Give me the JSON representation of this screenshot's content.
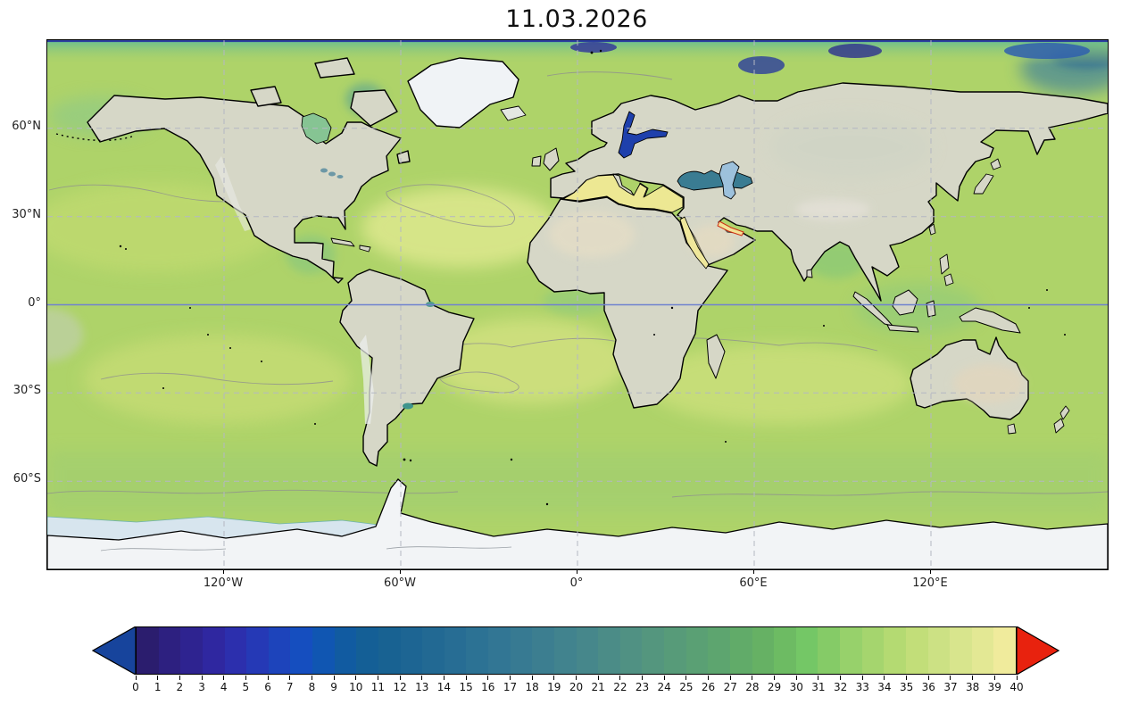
{
  "title": "11.03.2026",
  "axes": {
    "lat_ticks": [
      {
        "label": "60°N",
        "deg": 60
      },
      {
        "label": "30°N",
        "deg": 30
      },
      {
        "label": "0°",
        "deg": 0
      },
      {
        "label": "30°S",
        "deg": -30
      },
      {
        "label": "60°S",
        "deg": -60
      }
    ],
    "lon_ticks": [
      {
        "label": "120°W",
        "deg": -120
      },
      {
        "label": "60°W",
        "deg": -60
      },
      {
        "label": "0°",
        "deg": 0
      },
      {
        "label": "60°E",
        "deg": 60
      },
      {
        "label": "120°E",
        "deg": 120
      }
    ]
  },
  "chart_data": {
    "type": "heatmap",
    "title": "11.03.2026",
    "projection": "equirectangular world map (PlateCarree), lon -180..180, lat -90..90",
    "gridlines": {
      "lon_interval_deg": 60,
      "lat_interval_deg": 30,
      "style": "dashed gray, solid blue at equator"
    },
    "colorbar": {
      "orientation": "horizontal",
      "min": 0,
      "max": 40,
      "tick_interval": 1,
      "tick_labels": [
        "0",
        "1",
        "2",
        "3",
        "4",
        "5",
        "6",
        "7",
        "8",
        "9",
        "10",
        "11",
        "12",
        "13",
        "14",
        "15",
        "16",
        "17",
        "18",
        "19",
        "20",
        "21",
        "22",
        "23",
        "24",
        "25",
        "26",
        "27",
        "28",
        "29",
        "30",
        "31",
        "32",
        "33",
        "34",
        "35",
        "36",
        "37",
        "38",
        "39",
        "40"
      ],
      "extend": "both",
      "under_arrow_color": "#17449c",
      "over_arrow_color": "#e8220e",
      "segment_colors": [
        "#2b1d6e",
        "#2d2080",
        "#2e2390",
        "#2f27a0",
        "#2c2fad",
        "#2539b6",
        "#1d44bb",
        "#154ebf",
        "#1056b2",
        "#115ba1",
        "#145f96",
        "#186292",
        "#1d6593",
        "#226993",
        "#276d94",
        "#2c7294",
        "#327694",
        "#377a92",
        "#3c7e90",
        "#41838e",
        "#46878b",
        "#4b8c87",
        "#509183",
        "#54967e",
        "#579b79",
        "#5aa074",
        "#5da56f",
        "#61ab69",
        "#66b164",
        "#6dbb63",
        "#74c766",
        "#85cb67",
        "#97d16b",
        "#a5d56e",
        "#b4da72",
        "#c2de79",
        "#cce184",
        "#d8e58d",
        "#e3e894",
        "#f0eb9c"
      ]
    },
    "map_readings": [
      {
        "region": "Open ocean (most of the field)",
        "approx_value": 34,
        "color": "#aed369"
      },
      {
        "region": "Subtropical Atlantic / Indian gyres (pale patches)",
        "approx_value": 37,
        "color": "#d6e387"
      },
      {
        "region": "Baltic Sea",
        "approx_value": 7,
        "color": "#1e40ac"
      },
      {
        "region": "Black Sea",
        "approx_value": 18,
        "color": "#3a7c92"
      },
      {
        "region": "Caspian Sea",
        "approx_value": 12,
        "color": "#9dc1dc"
      },
      {
        "region": "Mediterranean Sea",
        "approx_value": 38,
        "color": "#ede893"
      },
      {
        "region": "Red Sea",
        "approx_value": 39,
        "color": "#efe79b"
      },
      {
        "region": "Persian Gulf",
        "approx_value": 40,
        "color": "#f2e296"
      },
      {
        "region": "Arctic shelf patches (Siberian coast)",
        "approx_value": 5,
        "color": "#2b3d9c"
      },
      {
        "region": "Arctic marginal band",
        "approx_value": 28,
        "color": "#84c78c"
      },
      {
        "region": "Antarctic sea-ice band / ice sheet",
        "approx_value": null,
        "color": "#d7e5ee"
      }
    ],
    "land_style": {
      "land_color": "#d6d7c7",
      "ice_color": "#f2f4f6",
      "coastline_color": "#000000"
    }
  }
}
